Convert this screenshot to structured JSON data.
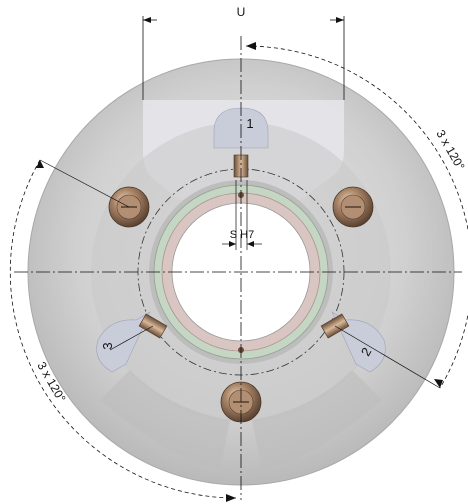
{
  "labels": {
    "u": "U",
    "s_h7": "S H7",
    "pos1": "1",
    "pos2": "2",
    "pos3": "3",
    "angle_right": "3 x 120°",
    "angle_left": "3 x 120°"
  },
  "colors": {
    "disc_outer": "#d2d2d2",
    "disc_inner": "#c4c4c4",
    "upper_panel": "#e4e4e8",
    "tab_blue": "#c9ccd9",
    "ring_green": "#c6d6c4",
    "ring_pink": "#d9c6c2",
    "bore": "#ffffff",
    "bolt_bronze": "#9a7a60",
    "line": "#111111"
  }
}
